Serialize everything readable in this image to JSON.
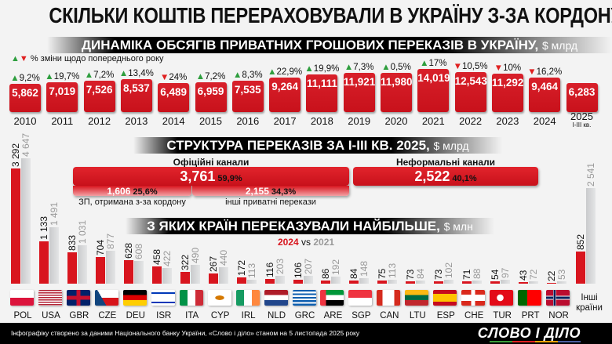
{
  "title": "СКІЛЬКИ КОШТІВ ПЕРЕРАХОВУВАЛИ В УКРАЇНУ З-ЗА КОРДОНУ",
  "colors": {
    "accent": "#d8151e",
    "secondary": "#c9cacc",
    "up": "#2e9e3e",
    "down": "#e02020"
  },
  "chart_data": [
    {
      "type": "bar",
      "title": "ДИНАМІКА ОБСЯГІВ ПРИВАТНИХ ГРОШОВИХ ПЕРЕКАЗІВ В УКРАЇНУ,",
      "unit": "$ млрд",
      "legend": "% зміни щодо попереднього року",
      "categories": [
        "2010",
        "2011",
        "2012",
        "2013",
        "2014",
        "2015",
        "2016",
        "2017",
        "2018",
        "2019",
        "2020",
        "2021",
        "2022",
        "2023",
        "2024",
        "2025"
      ],
      "category_sub": {
        "2025": "І-ІІІ кв."
      },
      "values": [
        "5,862",
        "7,019",
        "7,526",
        "8,537",
        "6,489",
        "6,959",
        "7,535",
        "9,264",
        "11,111",
        "11,921",
        "11,980",
        "14,019",
        "12,543",
        "11,292",
        "9,464",
        "6,283"
      ],
      "changes": [
        {
          "dir": "up",
          "text": "9,2%"
        },
        {
          "dir": "up",
          "text": "19,7%"
        },
        {
          "dir": "up",
          "text": "7,2%"
        },
        {
          "dir": "up",
          "text": "13,4%"
        },
        {
          "dir": "down",
          "text": "24%"
        },
        {
          "dir": "up",
          "text": "7,2%"
        },
        {
          "dir": "up",
          "text": "8,3%"
        },
        {
          "dir": "up",
          "text": "22,9%"
        },
        {
          "dir": "up",
          "text": "19,9%"
        },
        {
          "dir": "up",
          "text": "7,3%"
        },
        {
          "dir": "up",
          "text": "0,5%"
        },
        {
          "dir": "up",
          "text": "17%"
        },
        {
          "dir": "down",
          "text": "10,5%"
        },
        {
          "dir": "down",
          "text": "10%"
        },
        {
          "dir": "down",
          "text": "16,2%"
        },
        null
      ]
    },
    {
      "type": "bar",
      "title": "СТРУКТУРА ПЕРЕКАЗІВ ЗА І-ІІІ КВ. 2025,",
      "unit": "$ млрд",
      "official": {
        "label": "Офіційні канали",
        "value": "3,761",
        "pct": "59,9%",
        "parts": [
          {
            "value": "1,606",
            "pct": "25,6%",
            "label": "ЗП, отримана з-за кордону"
          },
          {
            "value": "2,155",
            "pct": "34,3%",
            "label": "інші приватні перекази"
          }
        ]
      },
      "informal": {
        "label": "Неформальні канали",
        "value": "2,522",
        "pct": "40,1%"
      }
    },
    {
      "type": "bar",
      "title": "З ЯКИХ КРАЇН ПЕРЕКАЗУВАЛИ НАЙБІЛЬШЕ,",
      "unit": "$ млн",
      "legend": {
        "a": "2024",
        "vs": "vs",
        "b": "2021"
      },
      "categories": [
        "POL",
        "USA",
        "GBR",
        "CZE",
        "DEU",
        "ISR",
        "ITA",
        "CYP",
        "IRL",
        "NLD",
        "GRC",
        "ARE",
        "SGP",
        "CAN",
        "LTU",
        "ESP",
        "CHE",
        "TUR",
        "PRT",
        "NOR",
        "Інші країни"
      ],
      "series": [
        {
          "name": "2024",
          "values": [
            3292,
            1133,
            833,
            704,
            628,
            458,
            322,
            267,
            172,
            116,
            106,
            86,
            84,
            75,
            73,
            73,
            71,
            54,
            43,
            22,
            852
          ]
        },
        {
          "name": "2021",
          "values": [
            4647,
            1491,
            1031,
            877,
            608,
            422,
            490,
            440,
            113,
            203,
            207,
            192,
            148,
            113,
            84,
            102,
            88,
            97,
            72,
            53,
            2541
          ]
        }
      ]
    }
  ],
  "footer": {
    "source": "Інфографіку створено за даними Національного банку України, «Слово і діло» станом на 5 листопада 2025 року",
    "logo": "СЛОВО І ДІЛО"
  }
}
